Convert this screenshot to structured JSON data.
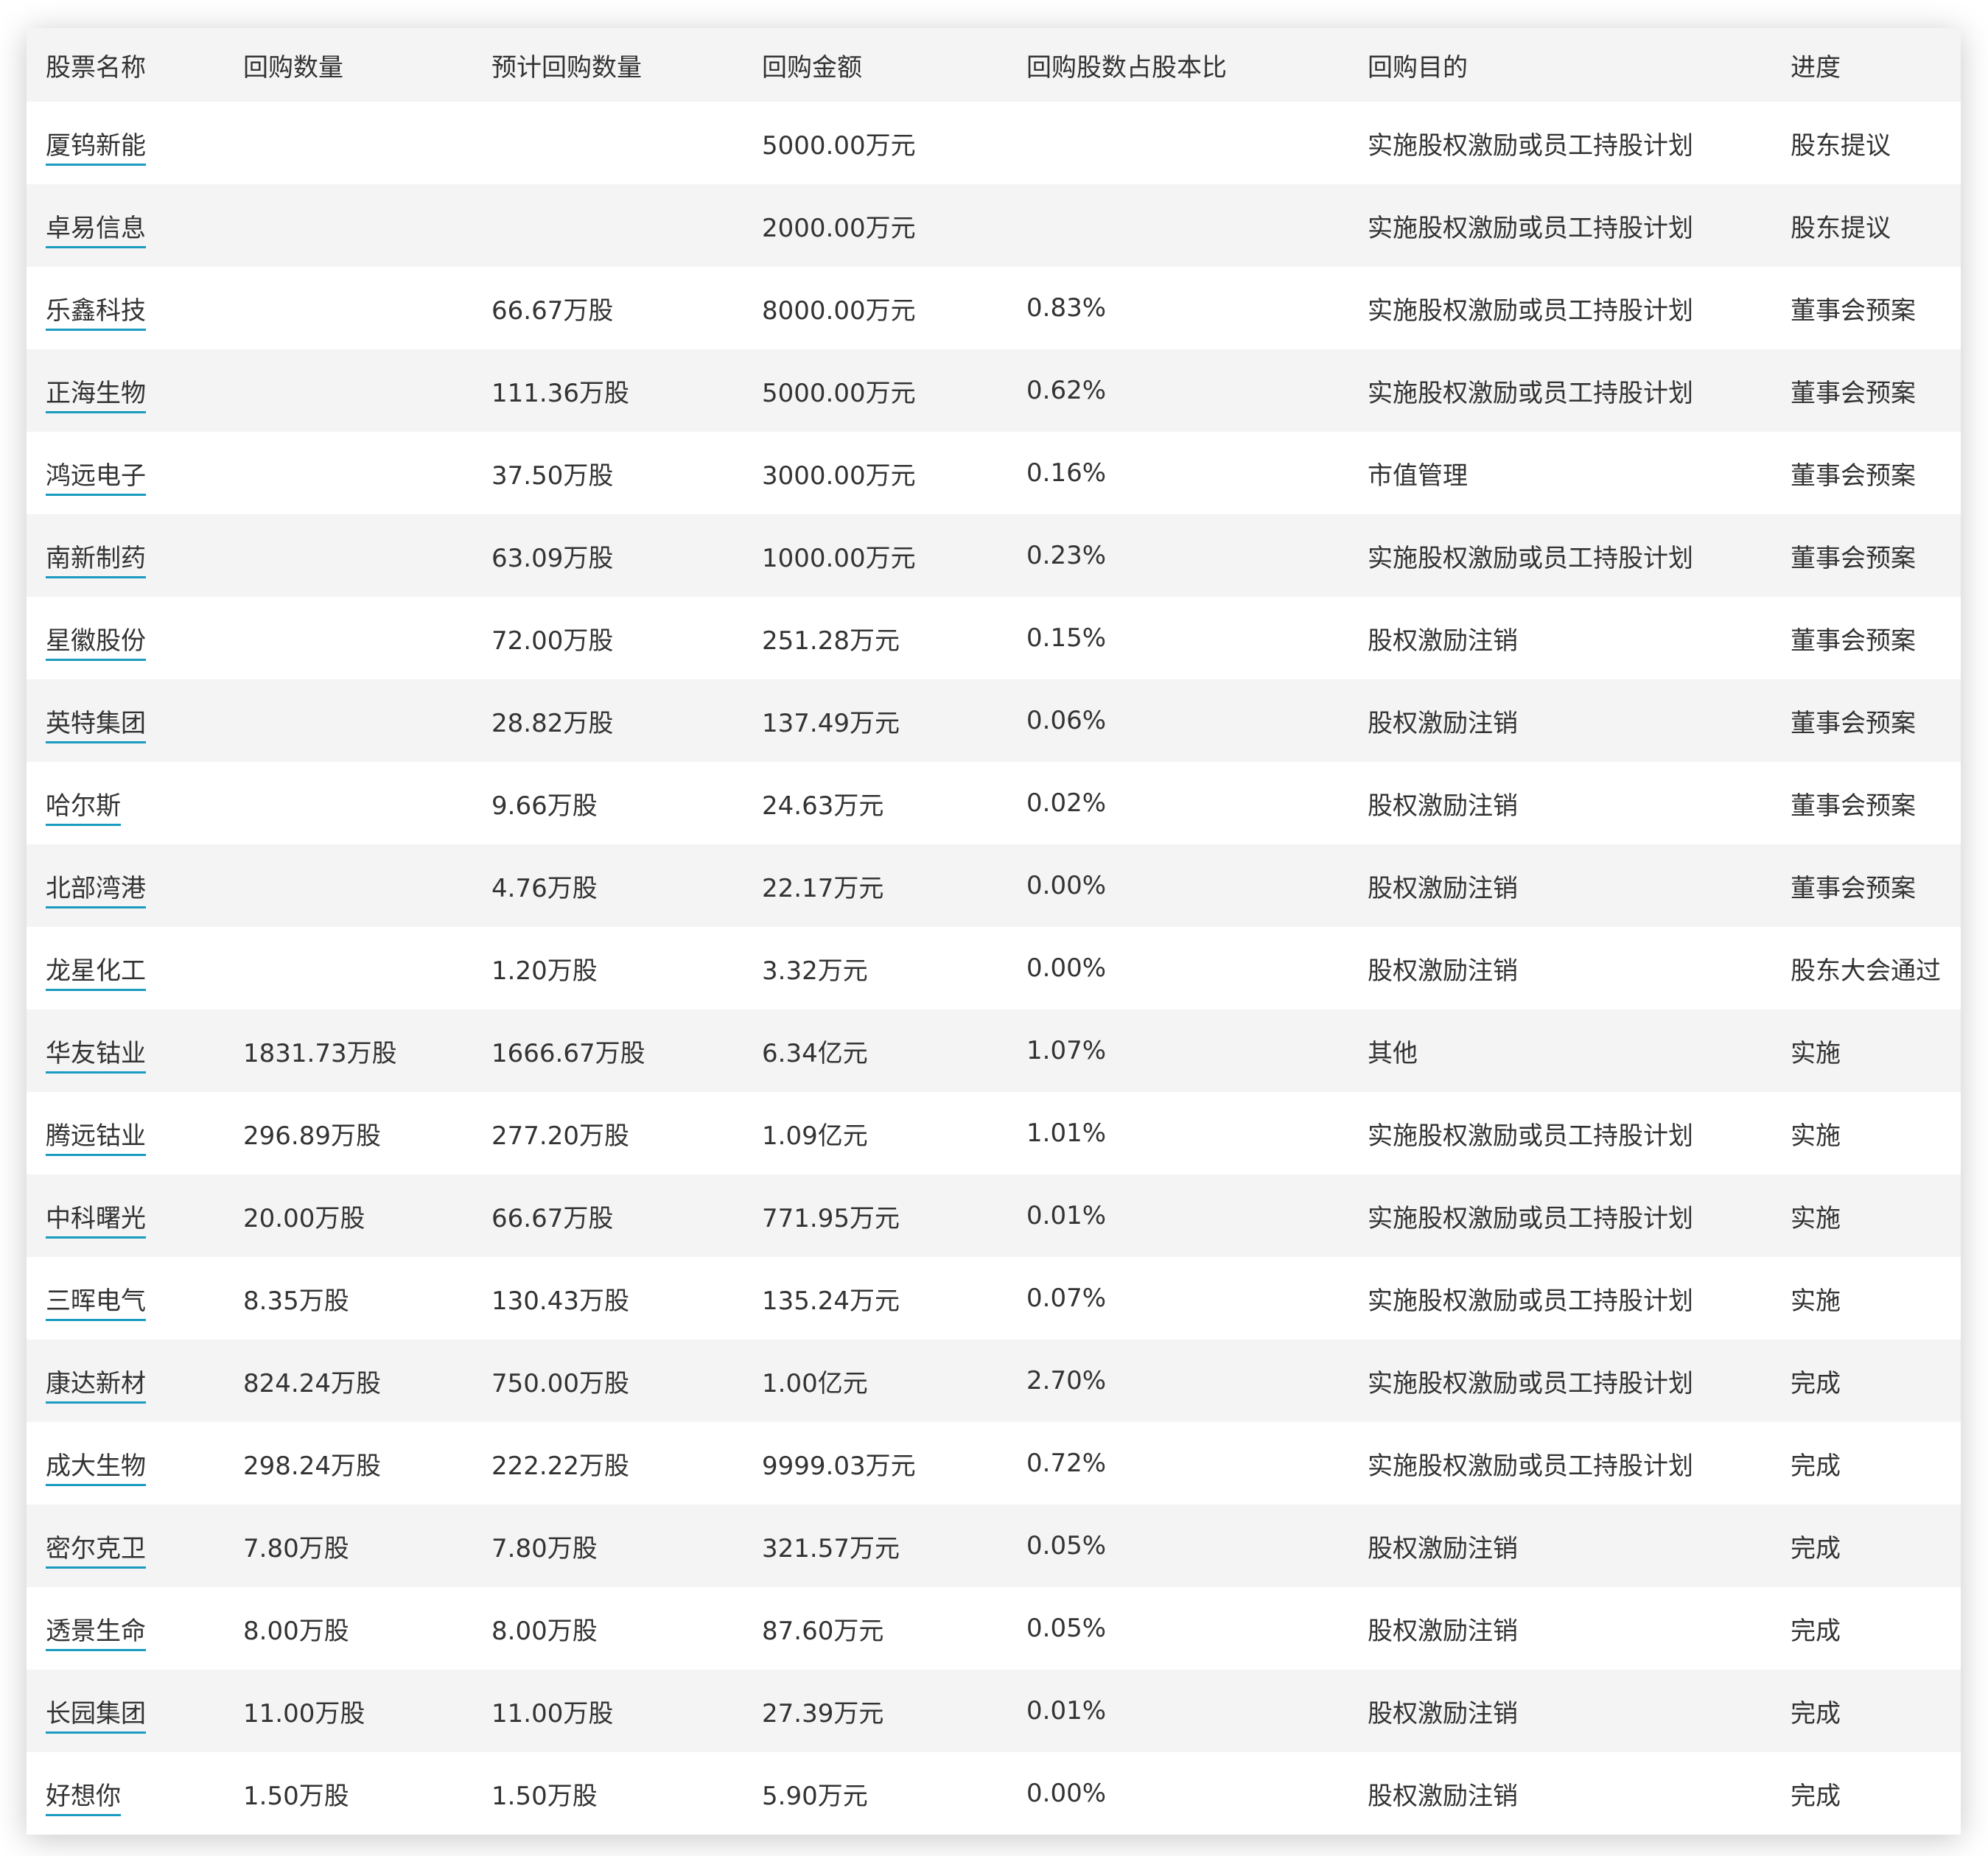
{
  "colors": {
    "link_underline": "#1a9bc0",
    "header_bg": "#f4f4f4",
    "stripe_bg": "#f4f4f4",
    "text": "#333333"
  },
  "table": {
    "headers": [
      "股票名称",
      "回购数量",
      "预计回购数量",
      "回购金额",
      "回购股数占股本比",
      "回购目的",
      "进度"
    ],
    "rows": [
      [
        "厦钨新能",
        "",
        "",
        "5000.00万元",
        "",
        "实施股权激励或员工持股计划",
        "股东提议"
      ],
      [
        "卓易信息",
        "",
        "",
        "2000.00万元",
        "",
        "实施股权激励或员工持股计划",
        "股东提议"
      ],
      [
        "乐鑫科技",
        "",
        "66.67万股",
        "8000.00万元",
        "0.83%",
        "实施股权激励或员工持股计划",
        "董事会预案"
      ],
      [
        "正海生物",
        "",
        "111.36万股",
        "5000.00万元",
        "0.62%",
        "实施股权激励或员工持股计划",
        "董事会预案"
      ],
      [
        "鸿远电子",
        "",
        "37.50万股",
        "3000.00万元",
        "0.16%",
        "市值管理",
        "董事会预案"
      ],
      [
        "南新制药",
        "",
        "63.09万股",
        "1000.00万元",
        "0.23%",
        "实施股权激励或员工持股计划",
        "董事会预案"
      ],
      [
        "星徽股份",
        "",
        "72.00万股",
        "251.28万元",
        "0.15%",
        "股权激励注销",
        "董事会预案"
      ],
      [
        "英特集团",
        "",
        "28.82万股",
        "137.49万元",
        "0.06%",
        "股权激励注销",
        "董事会预案"
      ],
      [
        "哈尔斯",
        "",
        "9.66万股",
        "24.63万元",
        "0.02%",
        "股权激励注销",
        "董事会预案"
      ],
      [
        "北部湾港",
        "",
        "4.76万股",
        "22.17万元",
        "0.00%",
        "股权激励注销",
        "董事会预案"
      ],
      [
        "龙星化工",
        "",
        "1.20万股",
        "3.32万元",
        "0.00%",
        "股权激励注销",
        "股东大会通过"
      ],
      [
        "华友钴业",
        "1831.73万股",
        "1666.67万股",
        "6.34亿元",
        "1.07%",
        "其他",
        "实施"
      ],
      [
        "腾远钴业",
        "296.89万股",
        "277.20万股",
        "1.09亿元",
        "1.01%",
        "实施股权激励或员工持股计划",
        "实施"
      ],
      [
        "中科曙光",
        "20.00万股",
        "66.67万股",
        "771.95万元",
        "0.01%",
        "实施股权激励或员工持股计划",
        "实施"
      ],
      [
        "三晖电气",
        "8.35万股",
        "130.43万股",
        "135.24万元",
        "0.07%",
        "实施股权激励或员工持股计划",
        "实施"
      ],
      [
        "康达新材",
        "824.24万股",
        "750.00万股",
        "1.00亿元",
        "2.70%",
        "实施股权激励或员工持股计划",
        "完成"
      ],
      [
        "成大生物",
        "298.24万股",
        "222.22万股",
        "9999.03万元",
        "0.72%",
        "实施股权激励或员工持股计划",
        "完成"
      ],
      [
        "密尔克卫",
        "7.80万股",
        "7.80万股",
        "321.57万元",
        "0.05%",
        "股权激励注销",
        "完成"
      ],
      [
        "透景生命",
        "8.00万股",
        "8.00万股",
        "87.60万元",
        "0.05%",
        "股权激励注销",
        "完成"
      ],
      [
        "长园集团",
        "11.00万股",
        "11.00万股",
        "27.39万元",
        "0.01%",
        "股权激励注销",
        "完成"
      ],
      [
        "好想你",
        "1.50万股",
        "1.50万股",
        "5.90万元",
        "0.00%",
        "股权激励注销",
        "完成"
      ]
    ]
  }
}
